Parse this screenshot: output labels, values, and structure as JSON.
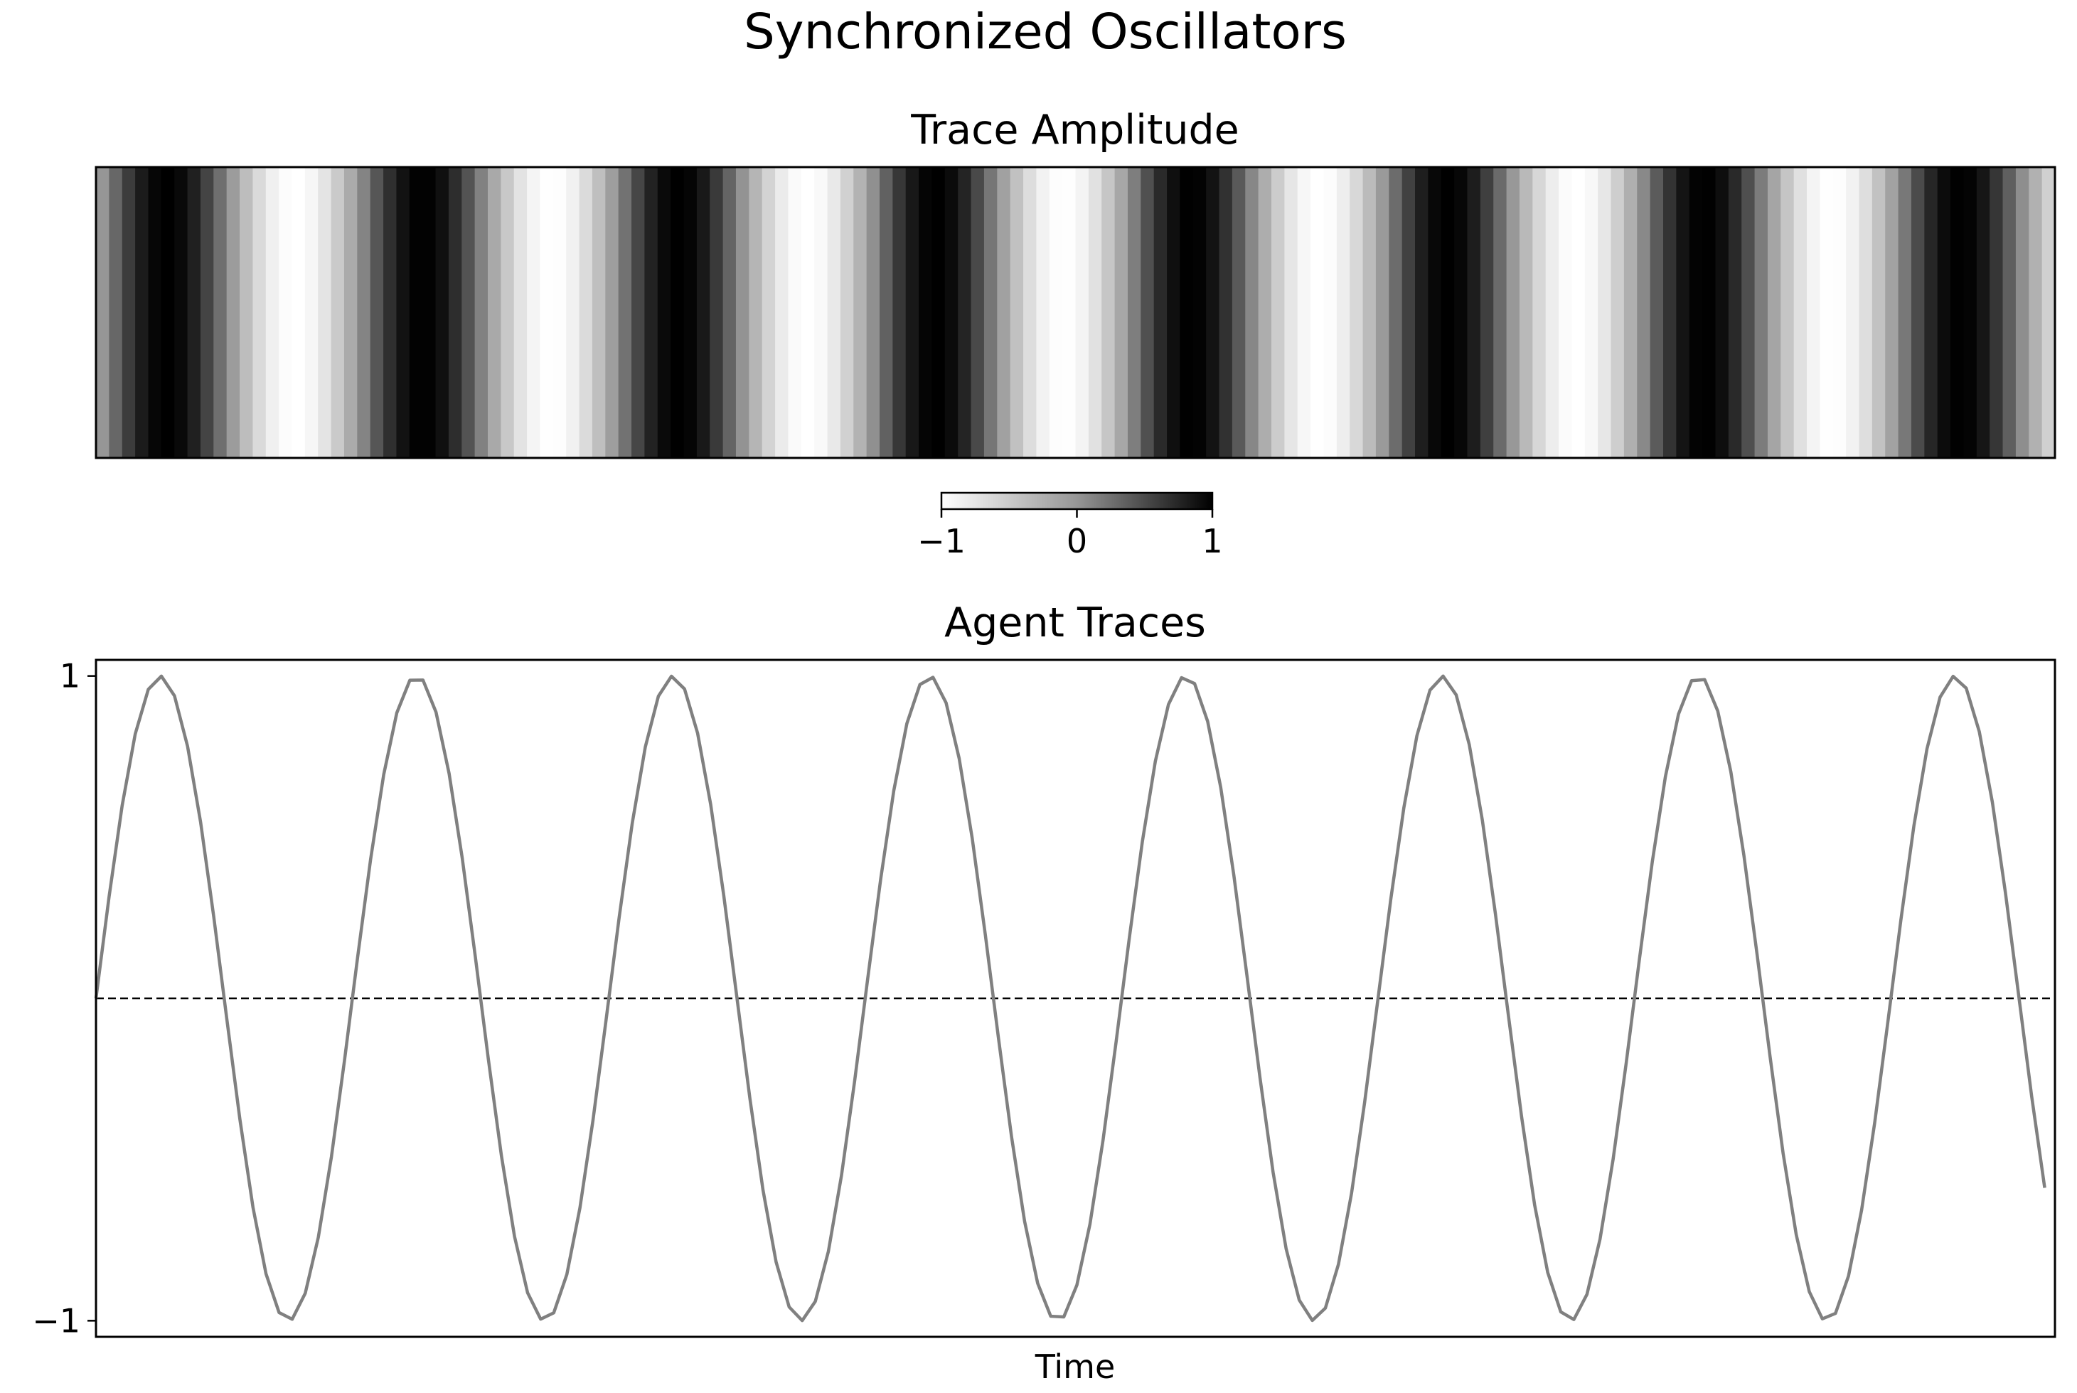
{
  "figure": {
    "title": "Synchronized Oscillators"
  },
  "chart_data": [
    {
      "type": "heatmap",
      "title": "Trace Amplitude",
      "colormap": "Greys",
      "vmin": -1,
      "vmax": 1,
      "grid": false,
      "n_cells": 150,
      "frequency": 0.8,
      "t_step": 0.0637,
      "colorbar": {
        "orientation": "horizontal",
        "placement": "below",
        "ticks": [
          -1,
          0,
          1
        ],
        "tick_labels": [
          "−1",
          "0",
          "1"
        ]
      }
    },
    {
      "type": "line",
      "title": "Agent Traces",
      "xlabel": "Time",
      "ylabel": "",
      "ylim": [
        -1.05,
        1.05
      ],
      "yticks": [
        1,
        -1
      ],
      "ytick_labels": [
        "1",
        "−1"
      ],
      "grid": false,
      "series": [
        {
          "color": "#808080",
          "x_start": 0,
          "x_end": 9.5,
          "n_points": 150,
          "function": "sin",
          "frequency": 0.8
        }
      ],
      "reference_line": {
        "y": 0,
        "style": "dashed",
        "color": "#000000"
      }
    }
  ]
}
